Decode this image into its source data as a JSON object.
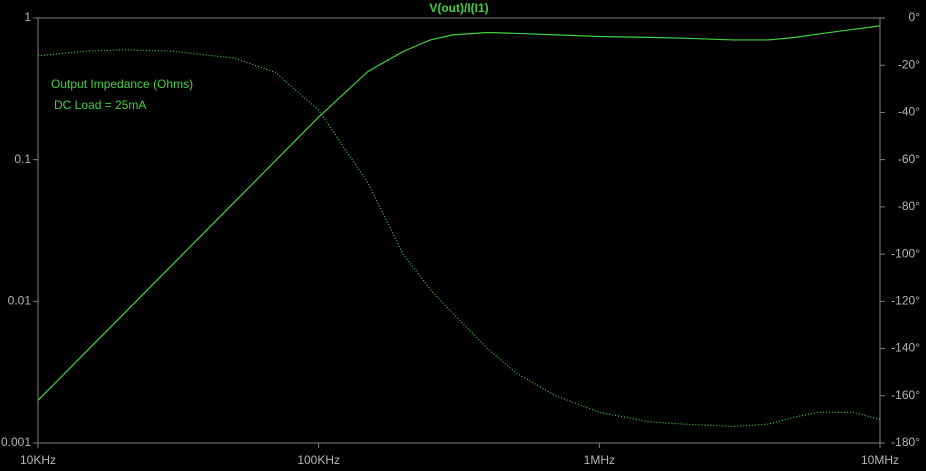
{
  "chart_data": {
    "type": "line",
    "title": "V(out)/I(I1)",
    "annotations": [
      "Output Impedance (Ohms)",
      "DC Load = 25mA"
    ],
    "x": [
      10000,
      15000,
      20000,
      30000,
      50000,
      70000,
      100000,
      150000,
      200000,
      250000,
      300000,
      400000,
      500000,
      700000,
      1000000,
      1500000,
      2000000,
      3000000,
      4000000,
      5000000,
      6000000,
      8000000,
      10000000
    ],
    "xscale": "log",
    "yscale": "log",
    "xlim": [
      10000,
      10000000
    ],
    "xticks": [
      {
        "value": 10000,
        "label": "10KHz"
      },
      {
        "value": 100000,
        "label": "100KHz"
      },
      {
        "value": 1000000,
        "label": "1MHz"
      },
      {
        "value": 10000000,
        "label": "10MHz"
      }
    ],
    "ylim": [
      0.001,
      1
    ],
    "yticks": [
      0.001,
      0.01,
      0.1,
      1
    ],
    "y2lim": [
      -180,
      0
    ],
    "y2ticks": [
      {
        "value": 0,
        "label": "0°"
      },
      {
        "value": -20,
        "label": "-20°"
      },
      {
        "value": -40,
        "label": "-40°"
      },
      {
        "value": -60,
        "label": "-60°"
      },
      {
        "value": -80,
        "label": "-80°"
      },
      {
        "value": -100,
        "label": "-100°"
      },
      {
        "value": -120,
        "label": "-120°"
      },
      {
        "value": -140,
        "label": "-140°"
      },
      {
        "value": -160,
        "label": "-160°"
      },
      {
        "value": -180,
        "label": "-180°"
      }
    ],
    "series": [
      {
        "color": "#3fd23f",
        "values": [
          0.002,
          0.0045,
          0.008,
          0.018,
          0.05,
          0.098,
          0.2,
          0.42,
          0.58,
          0.7,
          0.76,
          0.79,
          0.78,
          0.76,
          0.74,
          0.73,
          0.72,
          0.7,
          0.7,
          0.73,
          0.77,
          0.83,
          0.88
        ]
      },
      {
        "color": "#3fd23f",
        "axis": "y2",
        "dashed": true,
        "values": [
          -16,
          -14,
          -13.5,
          -14,
          -17,
          -23,
          -39,
          -70,
          -100,
          -115,
          -125,
          -140,
          -150,
          -160,
          -167,
          -171,
          -172,
          -173,
          -172,
          -169,
          -167,
          -167,
          -170
        ]
      }
    ]
  }
}
